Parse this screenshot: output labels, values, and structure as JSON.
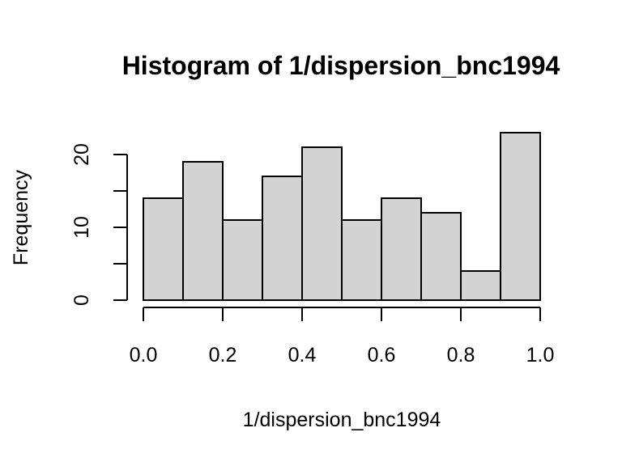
{
  "chart_data": {
    "type": "histogram",
    "title": "Histogram of 1/dispersion_bnc1994",
    "xlabel": "1/dispersion_bnc1994",
    "ylabel": "Frequency",
    "xlim": [
      0.0,
      1.0
    ],
    "ylim": [
      0,
      23
    ],
    "bins": [
      {
        "start": 0.0,
        "end": 0.1,
        "count": 14
      },
      {
        "start": 0.1,
        "end": 0.2,
        "count": 19
      },
      {
        "start": 0.2,
        "end": 0.3,
        "count": 11
      },
      {
        "start": 0.3,
        "end": 0.4,
        "count": 17
      },
      {
        "start": 0.4,
        "end": 0.5,
        "count": 21
      },
      {
        "start": 0.5,
        "end": 0.6,
        "count": 11
      },
      {
        "start": 0.6,
        "end": 0.7,
        "count": 14
      },
      {
        "start": 0.7,
        "end": 0.8,
        "count": 12
      },
      {
        "start": 0.8,
        "end": 0.9,
        "count": 4
      },
      {
        "start": 0.9,
        "end": 1.0,
        "count": 23
      }
    ],
    "x_ticks": [
      0.0,
      0.2,
      0.4,
      0.6,
      0.8,
      1.0
    ],
    "x_tick_labels": [
      "0.0",
      "0.2",
      "0.4",
      "0.6",
      "0.8",
      "1.0"
    ],
    "y_ticks": [
      0,
      5,
      10,
      15,
      20
    ],
    "y_tick_labels": [
      "0",
      "",
      "10",
      "",
      "20"
    ],
    "bar_color": "#d3d3d3",
    "edge_color": "#000000"
  }
}
